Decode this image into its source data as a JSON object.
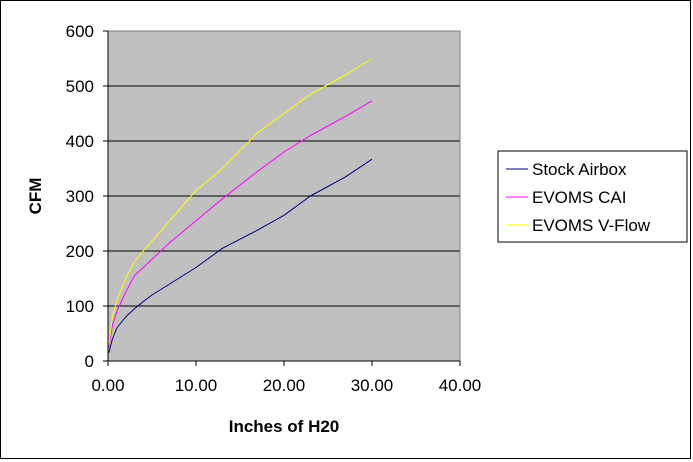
{
  "chart_data": {
    "type": "line",
    "xlabel": "Inches of H20",
    "ylabel": "CFM",
    "xlim": [
      0,
      40
    ],
    "ylim": [
      0,
      600
    ],
    "x_ticks": [
      "0.00",
      "10.00",
      "20.00",
      "30.00",
      "40.00"
    ],
    "y_ticks": [
      "0",
      "100",
      "200",
      "300",
      "400",
      "500",
      "600"
    ],
    "grid": "horizontal major gridlines",
    "plot_background": "#c0c0c0",
    "legend_position": "right",
    "series": [
      {
        "name": "Stock Airbox",
        "color": "#000080",
        "points": [
          [
            0.1,
            15
          ],
          [
            0.5,
            40
          ],
          [
            1,
            60
          ],
          [
            2,
            80
          ],
          [
            3,
            95
          ],
          [
            4,
            108
          ],
          [
            5,
            120
          ],
          [
            7,
            140
          ],
          [
            10,
            170
          ],
          [
            13,
            205
          ],
          [
            17,
            238
          ],
          [
            20,
            265
          ],
          [
            23,
            300
          ],
          [
            27,
            335
          ],
          [
            30,
            367
          ]
        ]
      },
      {
        "name": "EVOMS CAI",
        "color": "#ff00ff",
        "points": [
          [
            0.1,
            25
          ],
          [
            0.5,
            65
          ],
          [
            1,
            90
          ],
          [
            2,
            125
          ],
          [
            3,
            155
          ],
          [
            4,
            170
          ],
          [
            5,
            185
          ],
          [
            7,
            215
          ],
          [
            10,
            255
          ],
          [
            13,
            295
          ],
          [
            17,
            345
          ],
          [
            20,
            380
          ],
          [
            23,
            410
          ],
          [
            27,
            445
          ],
          [
            30,
            473
          ]
        ]
      },
      {
        "name": "EVOMS V-Flow",
        "color": "#ffff00",
        "points": [
          [
            0.1,
            30
          ],
          [
            0.5,
            80
          ],
          [
            1,
            110
          ],
          [
            2,
            150
          ],
          [
            3,
            180
          ],
          [
            4,
            200
          ],
          [
            5,
            218
          ],
          [
            7,
            255
          ],
          [
            10,
            310
          ],
          [
            13,
            350
          ],
          [
            17,
            415
          ],
          [
            20,
            450
          ],
          [
            23,
            485
          ],
          [
            27,
            520
          ],
          [
            30,
            550
          ]
        ]
      }
    ]
  }
}
